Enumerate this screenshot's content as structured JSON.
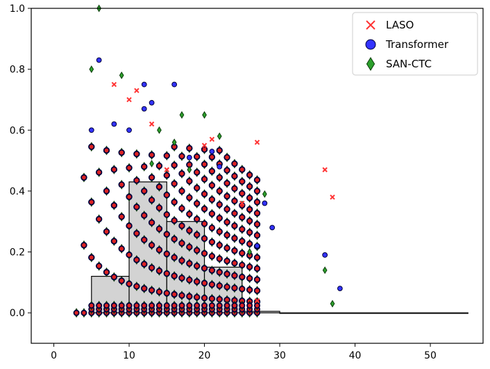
{
  "chart_data": {
    "type": "scatter",
    "title": "",
    "xlabel": "",
    "ylabel": "",
    "xlim": [
      -3,
      57
    ],
    "ylim": [
      -0.1,
      1.0
    ],
    "xticks": [
      "0",
      "10",
      "20",
      "30",
      "40",
      "50"
    ],
    "yticks": [
      "0.0",
      "0.2",
      "0.4",
      "0.6",
      "0.8",
      "1.0"
    ],
    "grid": false,
    "legend_position": "top-right",
    "legend": [
      "LASO",
      "Transformer",
      "SAN-CTC"
    ],
    "histogram": {
      "bins": [
        [
          5,
          10,
          0.12
        ],
        [
          10,
          15,
          0.43
        ],
        [
          15,
          20,
          0.3
        ],
        [
          20,
          25,
          0.15
        ],
        [
          25,
          30,
          0.005
        ],
        [
          30,
          55,
          0.0
        ]
      ],
      "fill": "#d3d3d3"
    },
    "series": [
      {
        "name": "LASO",
        "marker": "x",
        "color": "#ff3333",
        "points": [
          [
            8,
            0.75
          ],
          [
            10,
            0.7
          ],
          [
            11,
            0.73
          ],
          [
            20,
            0.55
          ],
          [
            21,
            0.57
          ],
          [
            25,
            0.36
          ],
          [
            27,
            0.56
          ],
          [
            27,
            0.04
          ],
          [
            36,
            0.47
          ],
          [
            37,
            0.38
          ],
          [
            13,
            0.62
          ],
          [
            15,
            0.47
          ]
        ]
      },
      {
        "name": "Transformer",
        "marker": "o",
        "color": "#3333ff",
        "points": [
          [
            5,
            0.6
          ],
          [
            6,
            0.83
          ],
          [
            12,
            0.75
          ],
          [
            12,
            0.67
          ],
          [
            13,
            0.69
          ],
          [
            16,
            0.75
          ],
          [
            18,
            0.51
          ],
          [
            21,
            0.53
          ],
          [
            22,
            0.48
          ],
          [
            27,
            0.22
          ],
          [
            28,
            0.36
          ],
          [
            29,
            0.28
          ],
          [
            36,
            0.19
          ],
          [
            38,
            0.08
          ],
          [
            10,
            0.6
          ],
          [
            8,
            0.62
          ]
        ]
      },
      {
        "name": "SAN-CTC",
        "marker": "d",
        "color": "#2ca02c",
        "points": [
          [
            6,
            1.0
          ],
          [
            5,
            0.8
          ],
          [
            9,
            0.78
          ],
          [
            14,
            0.6
          ],
          [
            17,
            0.65
          ],
          [
            20,
            0.65
          ],
          [
            22,
            0.58
          ],
          [
            16,
            0.56
          ],
          [
            28,
            0.39
          ],
          [
            26,
            0.2
          ],
          [
            36,
            0.14
          ],
          [
            37,
            0.03
          ],
          [
            13,
            0.49
          ],
          [
            18,
            0.47
          ]
        ]
      }
    ]
  }
}
